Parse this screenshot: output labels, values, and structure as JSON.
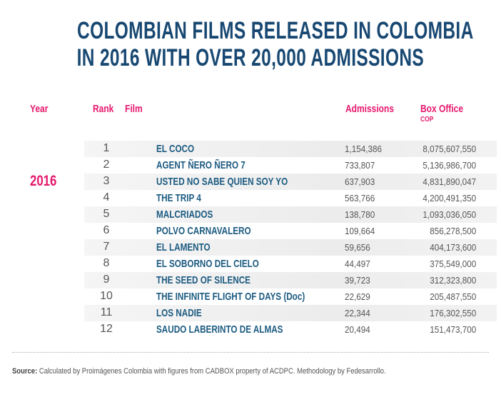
{
  "title": {
    "line1": "COLOMBIAN FILMS RELEASED IN COLOMBIA",
    "line2": "IN 2016 WITH OVER 20,000 ADMISSIONS"
  },
  "headers": {
    "year": "Year",
    "rank": "Rank",
    "film": "Film",
    "admissions": "Admissions",
    "box_office": "Box Office",
    "box_office_unit": "COP"
  },
  "year": "2016",
  "rows": [
    {
      "rank": "1",
      "film": "EL COCO",
      "admissions": "1,154,386",
      "box_office": "8,075,607,550"
    },
    {
      "rank": "2",
      "film": "AGENT ÑERO ÑERO 7",
      "admissions": "733,807",
      "box_office": "5,136,986,700"
    },
    {
      "rank": "3",
      "film": "USTED NO SABE QUIEN SOY YO",
      "admissions": "637,903",
      "box_office": "4,831,890,047"
    },
    {
      "rank": "4",
      "film": "THE TRIP 4",
      "admissions": "563,766",
      "box_office": "4,200,491,350"
    },
    {
      "rank": "5",
      "film": "MALCRIADOS",
      "admissions": "138,780",
      "box_office": "1,093,036,050"
    },
    {
      "rank": "6",
      "film": "POLVO CARNAVALERO",
      "admissions": "109,664",
      "box_office": "856,278,500"
    },
    {
      "rank": "7",
      "film": "EL LAMENTO",
      "admissions": "59,656",
      "box_office": "404,173,600"
    },
    {
      "rank": "8",
      "film": "EL SOBORNO DEL CIELO",
      "admissions": "44,497",
      "box_office": "375,549,000"
    },
    {
      "rank": "9",
      "film": "THE SEED OF SILENCE",
      "admissions": "39,723",
      "box_office": "312,323,800"
    },
    {
      "rank": "10",
      "film": "THE INFINITE FLIGHT OF DAYS (Doc)",
      "admissions": "22,629",
      "box_office": "205,487,550"
    },
    {
      "rank": "11",
      "film": "LOS NADIE",
      "admissions": "22,344",
      "box_office": "176,302,550"
    },
    {
      "rank": "12",
      "film": "SAUDO LABERINTO DE ALMAS",
      "admissions": "20,494",
      "box_office": "151,473,700"
    }
  ],
  "source": {
    "label": "Source:",
    "text": " Calculated by Proimágenes Colombia with figures from CADBOX property of ACDPC. Methodology by Fedesarrollo."
  },
  "colors": {
    "title": "#184872",
    "accent": "#e5196e",
    "film": "#1b5a80"
  }
}
